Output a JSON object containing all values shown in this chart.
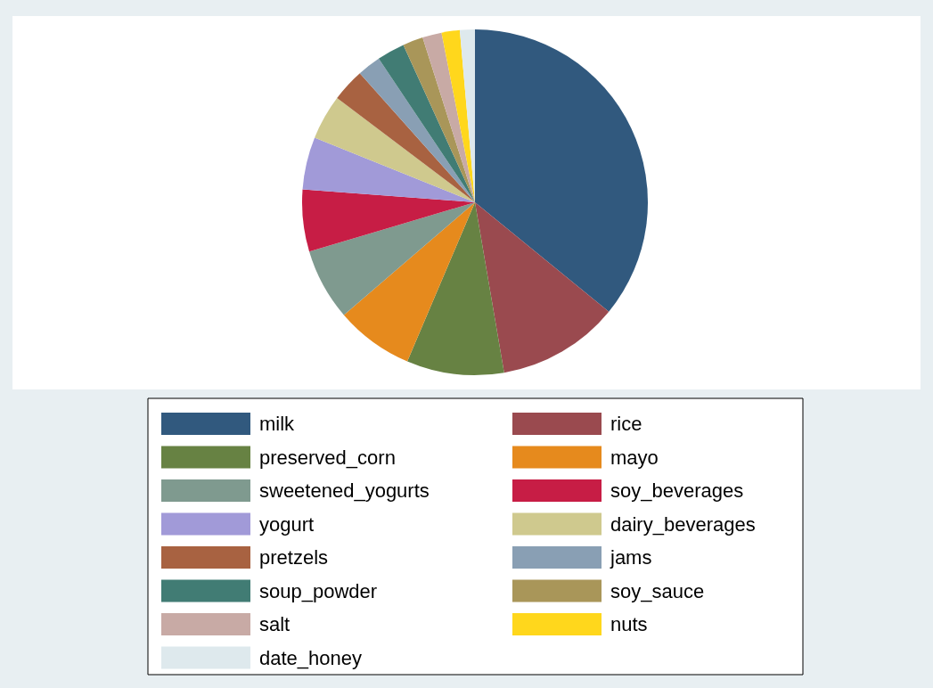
{
  "chart_data": {
    "type": "pie",
    "categories": [
      "milk",
      "rice",
      "preserved_corn",
      "mayo",
      "sweetened_yogurts",
      "soy_beverages",
      "yogurt",
      "dairy_beverages",
      "pretzels",
      "jams",
      "soup_powder",
      "soy_sauce",
      "salt",
      "nuts",
      "date_honey"
    ],
    "values": [
      35.9,
      11.4,
      9.1,
      7.3,
      6.7,
      5.8,
      4.9,
      4.2,
      3.1,
      2.2,
      2.6,
      1.9,
      1.8,
      1.7,
      1.4
    ],
    "colors": [
      "#31597e",
      "#9a4a4f",
      "#678243",
      "#e68a1d",
      "#7f9a8f",
      "#c71d45",
      "#a19ad8",
      "#cfc98e",
      "#a86241",
      "#899fb4",
      "#417c74",
      "#a99659",
      "#c8aaa5",
      "#ffd71c",
      "#dee9ed"
    ],
    "legend": "bottom"
  }
}
